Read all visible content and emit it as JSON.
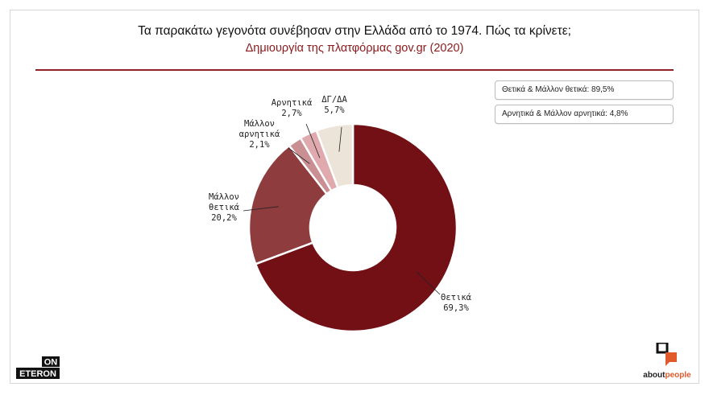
{
  "title": "Τα παρακάτω γεγονότα συνέβησαν στην Ελλάδα από το 1974. Πώς τα κρίνετε;",
  "subtitle": "Δημιουργία της πλατφόρμας gov.gr (2020)",
  "summary": [
    "Θετικά & Μάλλον θετικά: 89,5%",
    "Αρνητικά & Μάλλον αρνητικά: 4,8%"
  ],
  "logos": {
    "left_top": "ON",
    "left_bottom": "ETERON",
    "right_a": "about",
    "right_b": "people"
  },
  "chart_data": {
    "type": "pie",
    "donut": true,
    "slices": [
      {
        "name": "Θετικά",
        "value": 69.3,
        "label": "69,3%",
        "color": "#721015"
      },
      {
        "name": "Μάλλον θετικά",
        "value": 20.2,
        "label": "20,2%",
        "color": "#8e3c3e"
      },
      {
        "name": "Μάλλον αρνητικά",
        "value": 2.1,
        "label": "2,1%",
        "color": "#c98f93"
      },
      {
        "name": "Αρνητικά",
        "value": 2.7,
        "label": "2,7%",
        "color": "#e0a9ad"
      },
      {
        "name": "ΔΓ/ΔΑ",
        "value": 5.7,
        "label": "5,7%",
        "color": "#ece3d9"
      }
    ]
  }
}
